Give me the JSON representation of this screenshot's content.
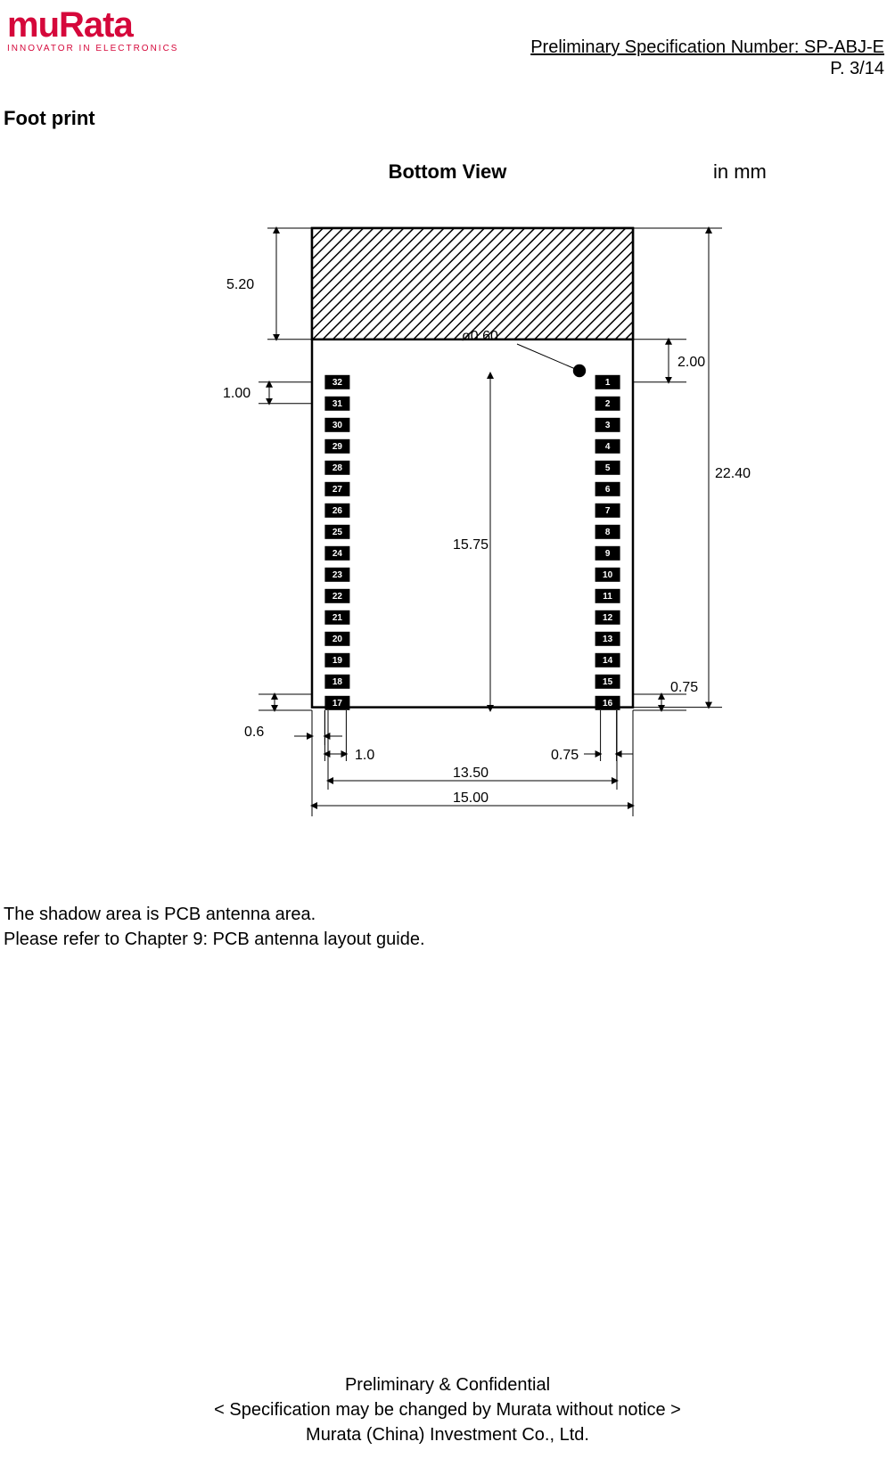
{
  "logo": {
    "brand": "muRata",
    "tagline": "INNOVATOR IN ELECTRONICS",
    "color": "#d5083b"
  },
  "header": {
    "spec_number": "Preliminary Specification Number: SP-ABJ-E",
    "page": "P.  3/14"
  },
  "section": {
    "title": "Foot print",
    "view": "Bottom View",
    "unit": "in mm"
  },
  "diagram": {
    "colors": {
      "outline": "#000000",
      "hatch": "#000000",
      "pin_bg": "#000000",
      "pin_fg": "#ffffff",
      "bg": "#ffffff"
    },
    "outer": {
      "w_mm": 15.0,
      "h_mm": 22.4
    },
    "antenna_h_mm": 5.2,
    "inner_w_mm": 13.5,
    "pin_col_h_mm": 15.75,
    "pin1_from_top_mm": 2.0,
    "pin_pitch_mm": 1.0,
    "pad": {
      "w_mm": 1.0,
      "h_mm": 0.75,
      "edge_gap_mm": 0.6,
      "gap_right_mm": 0.75
    },
    "dot_dia_mm": 0.6,
    "pins_right": [
      "1",
      "2",
      "3",
      "4",
      "5",
      "6",
      "7",
      "8",
      "9",
      "10",
      "11",
      "12",
      "13",
      "14",
      "15",
      "16"
    ],
    "pins_left": [
      "32",
      "31",
      "30",
      "29",
      "28",
      "27",
      "26",
      "25",
      "24",
      "23",
      "22",
      "21",
      "20",
      "19",
      "18",
      "17"
    ],
    "dim_labels": {
      "ant_h": "5.20",
      "pitch": "1.00",
      "dot": "ø0.60",
      "pin1_top": "2.00",
      "total_h": "22.40",
      "col_h": "15.75",
      "bot_right_h": "0.75",
      "bot_left_w": "0.6",
      "pad_w": "1.0",
      "pad_gap": "0.75",
      "inner_w": "13.50",
      "outer_w": "15.00"
    }
  },
  "body": {
    "line1": "The shadow area is PCB antenna area.",
    "line2": "Please refer to Chapter 9: PCB antenna layout guide."
  },
  "footer": {
    "l1": "Preliminary & Confidential",
    "l2": "< Specification may be changed by Murata without notice >",
    "l3": "Murata (China) Investment Co., Ltd."
  }
}
